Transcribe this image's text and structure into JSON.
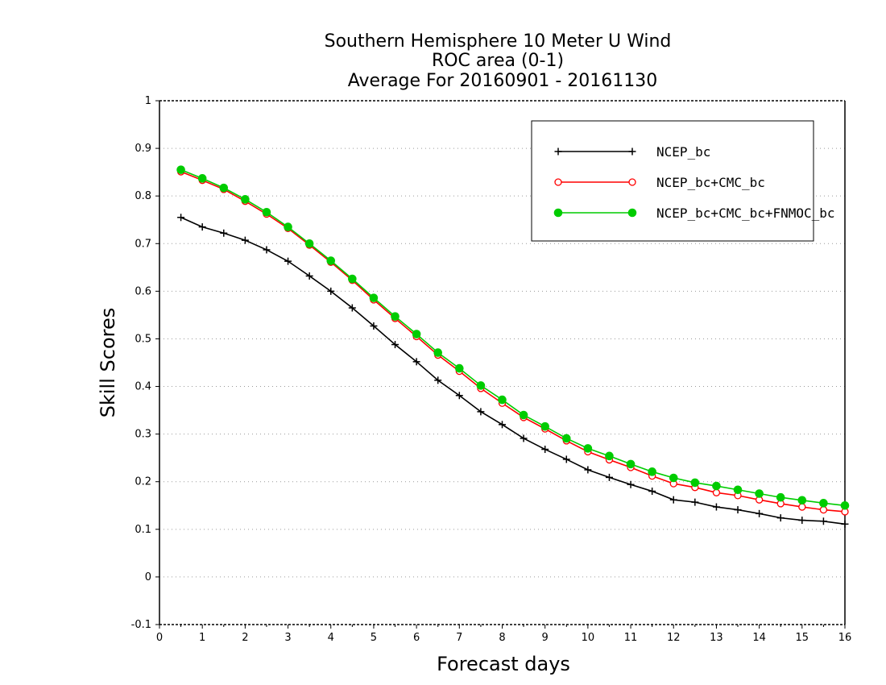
{
  "chart_data": {
    "type": "line",
    "title": [
      "Southern Hemisphere 10 Meter U Wind",
      "ROC area (0-1)",
      "Average For 20160901 - 20161130"
    ],
    "xlabel": "Forecast days",
    "ylabel": "Skill Scores",
    "xlim": [
      0,
      16
    ],
    "ylim": [
      -0.1,
      1
    ],
    "xticks": [
      "0",
      "1",
      "2",
      "3",
      "4",
      "5",
      "6",
      "7",
      "8",
      "9",
      "10",
      "11",
      "12",
      "13",
      "14",
      "15",
      "16"
    ],
    "yticks": [
      "-0.1",
      "0",
      "0.1",
      "0.2",
      "0.3",
      "0.4",
      "0.5",
      "0.6",
      "0.7",
      "0.8",
      "0.9",
      "1"
    ],
    "grid": "horizontal dotted",
    "legend_position": "top-right",
    "x": [
      0.5,
      1,
      1.5,
      2,
      2.5,
      3,
      3.5,
      4,
      4.5,
      5,
      5.5,
      6,
      6.5,
      7,
      7.5,
      8,
      8.5,
      9,
      9.5,
      10,
      10.5,
      11,
      11.5,
      12,
      12.5,
      13,
      13.5,
      14,
      14.5,
      15,
      15.5,
      16
    ],
    "series": [
      {
        "name": "NCEP_bc",
        "color": "#000000",
        "marker": "plus",
        "values": [
          0.755,
          0.735,
          0.722,
          0.707,
          0.687,
          0.663,
          0.632,
          0.6,
          0.565,
          0.527,
          0.488,
          0.452,
          0.413,
          0.381,
          0.347,
          0.32,
          0.291,
          0.268,
          0.247,
          0.225,
          0.209,
          0.194,
          0.18,
          0.162,
          0.157,
          0.147,
          0.141,
          0.133,
          0.124,
          0.119,
          0.117,
          0.111
        ]
      },
      {
        "name": "NCEP_bc+CMC_bc",
        "color": "#ff0000",
        "marker": "open-circle",
        "values": [
          0.851,
          0.833,
          0.814,
          0.789,
          0.762,
          0.732,
          0.697,
          0.661,
          0.623,
          0.582,
          0.543,
          0.505,
          0.466,
          0.432,
          0.396,
          0.365,
          0.335,
          0.311,
          0.286,
          0.263,
          0.246,
          0.23,
          0.212,
          0.196,
          0.188,
          0.177,
          0.171,
          0.162,
          0.154,
          0.147,
          0.141,
          0.137
        ]
      },
      {
        "name": "NCEP_bc+CMC_bc+FNMOC_bc",
        "color": "#00cc00",
        "marker": "filled-circle",
        "values": [
          0.855,
          0.837,
          0.817,
          0.793,
          0.766,
          0.735,
          0.7,
          0.664,
          0.626,
          0.586,
          0.547,
          0.51,
          0.471,
          0.438,
          0.402,
          0.372,
          0.34,
          0.316,
          0.291,
          0.27,
          0.254,
          0.237,
          0.221,
          0.208,
          0.198,
          0.191,
          0.183,
          0.175,
          0.167,
          0.161,
          0.155,
          0.15
        ]
      }
    ]
  }
}
